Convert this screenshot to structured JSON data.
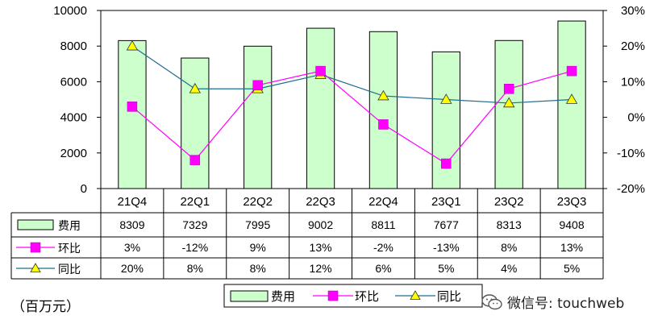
{
  "chart_data": {
    "type": "bar",
    "categories": [
      "21Q4",
      "22Q1",
      "22Q2",
      "22Q3",
      "22Q4",
      "23Q1",
      "23Q2",
      "23Q3"
    ],
    "series": [
      {
        "name": "费用",
        "kind": "bar",
        "axis": "left",
        "values": [
          8309,
          7329,
          7995,
          9002,
          8811,
          7677,
          8313,
          9408
        ],
        "labels": [
          "8309",
          "7329",
          "7995",
          "9002",
          "8811",
          "7677",
          "8313",
          "9408"
        ],
        "color": "#ccffcc"
      },
      {
        "name": "环比",
        "kind": "line",
        "axis": "right",
        "marker": "square",
        "values": [
          3,
          -12,
          9,
          13,
          -2,
          -13,
          8,
          13
        ],
        "labels": [
          "3%",
          "-12%",
          "9%",
          "13%",
          "-2%",
          "-13%",
          "8%",
          "13%"
        ],
        "color": "#ff00ff"
      },
      {
        "name": "同比",
        "kind": "line",
        "axis": "right",
        "marker": "triangle",
        "values": [
          20,
          8,
          8,
          12,
          6,
          5,
          4,
          5
        ],
        "labels": [
          "20%",
          "8%",
          "8%",
          "12%",
          "6%",
          "5%",
          "4%",
          "5%"
        ],
        "color": "#ffff00",
        "line_color": "#1f6e8c"
      }
    ],
    "y_left": {
      "ticks": [
        "0",
        "2000",
        "4000",
        "6000",
        "8000",
        "10000"
      ],
      "ylim": [
        0,
        10000
      ]
    },
    "y_right": {
      "ticks": [
        "-20%",
        "-10%",
        "0%",
        "10%",
        "20%",
        "30%"
      ],
      "ylim": [
        -20,
        30
      ]
    },
    "unit_label": "（百万元）",
    "legend_position": "bottom"
  },
  "watermark": {
    "text": "微信号: touchweb",
    "icon": "wechat-icon"
  }
}
